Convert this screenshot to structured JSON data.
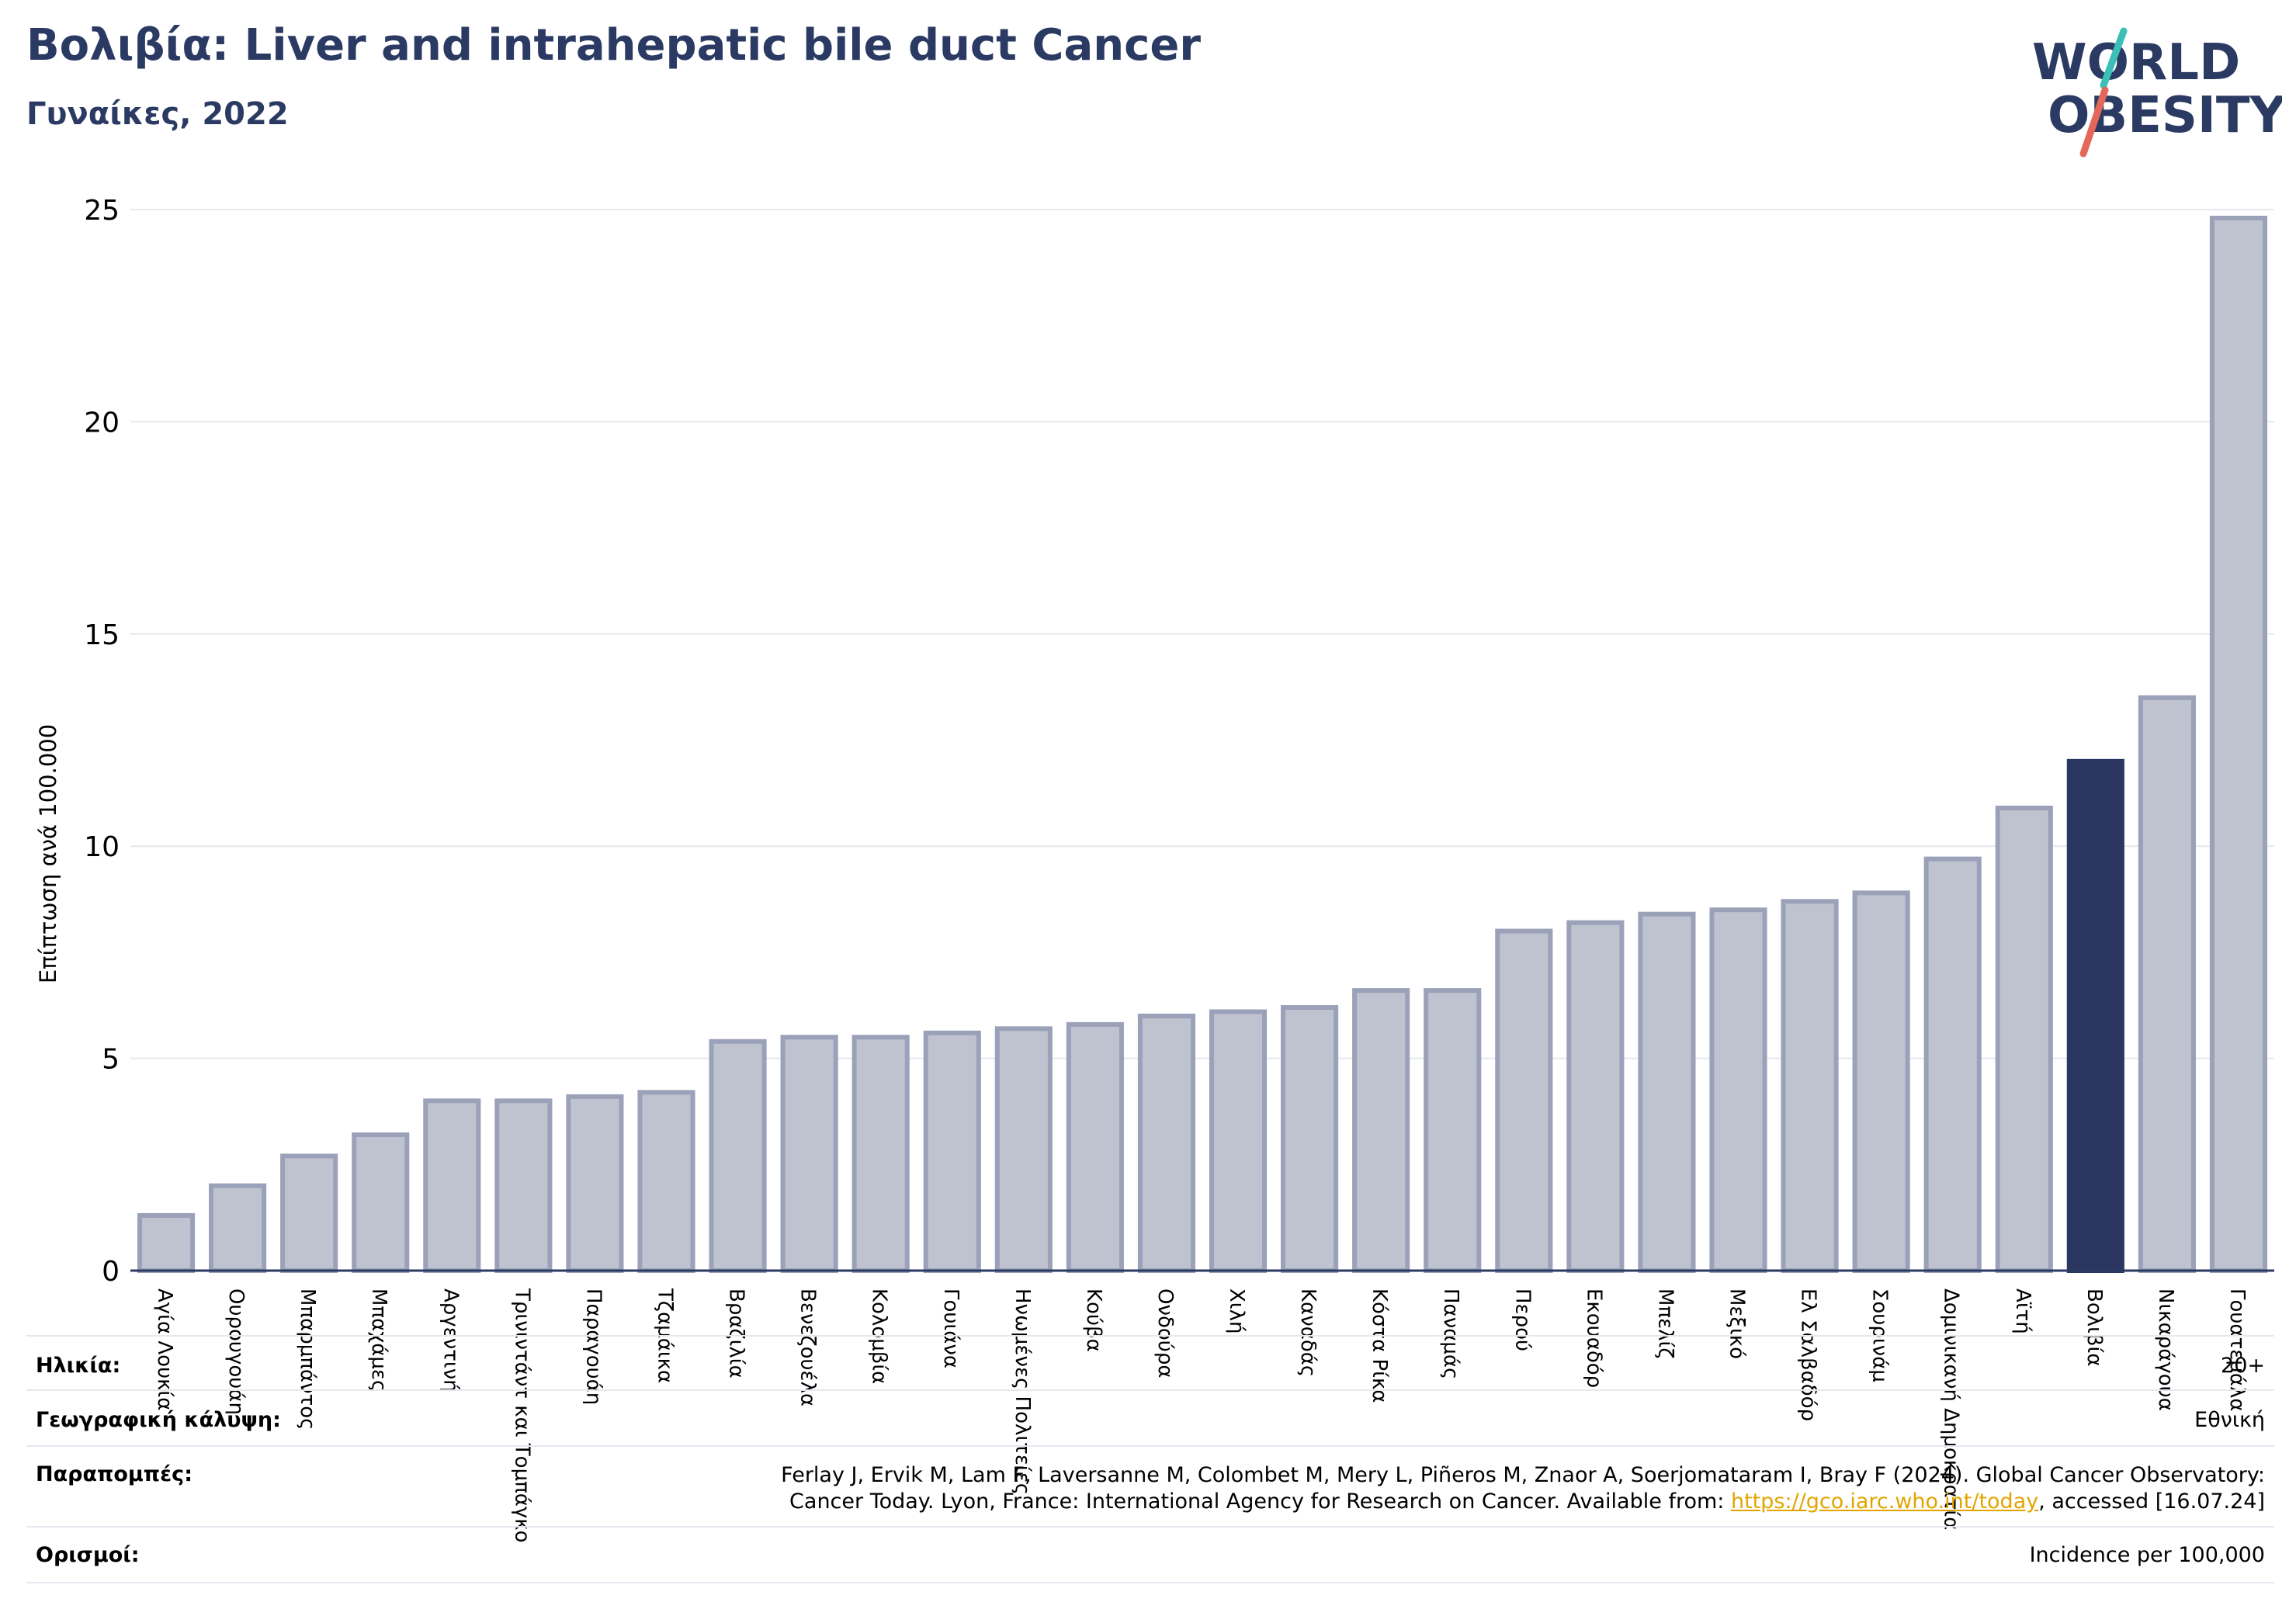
{
  "header": {
    "title": "Βολιβία: Liver and intrahepatic bile duct Cancer",
    "subtitle": "Γυναίκες, 2022"
  },
  "logo": {
    "line1": "WORLD",
    "line2": "OBESITY",
    "colors": {
      "text": "#2b3a63",
      "slash_top": "#3bbfb7",
      "slash_bottom": "#e4685a"
    }
  },
  "colors": {
    "bar_fill": "#bfc3d0",
    "bar_stroke": "#9aa1b8",
    "highlight": "#2b3761",
    "grid": "#e6e8ef",
    "axis": "#2b3a63"
  },
  "chart_data": {
    "type": "bar",
    "ylabel": "Επίπτωση ανά 100.000",
    "ylim": [
      0,
      25
    ],
    "yticks": [
      0,
      5,
      10,
      15,
      20,
      25
    ],
    "grid": true,
    "highlight_category": "Βολιβία",
    "categories": [
      "Αγία Λουκία",
      "Ουρουγουάη",
      "Μπαρμπάντος",
      "Μπαχάμες",
      "Αργεντινή",
      "Τρινιντάντ και Τομπάγκο",
      "Παραγουάη",
      "Τζαμάικα",
      "Βραζιλία",
      "Βενεζουέλα",
      "Κολομβία",
      "Γουιάνα",
      "Ηνωμένες Πολιτείες",
      "Κούβα",
      "Ονδούρα",
      "Χιλή",
      "Καναδάς",
      "Κόστα Ρίκα",
      "Παναμάς",
      "Περού",
      "Εκουαδόρ",
      "Μπελίζ",
      "Μεξικό",
      "Ελ Σαλβαδόρ",
      "Σουρινάμ",
      "Δομινικανή Δημοκρατία",
      "Αϊτή",
      "Βολιβία",
      "Νικαράγουα",
      "Γουατεμάλα"
    ],
    "values": [
      1.3,
      2.0,
      2.7,
      3.2,
      4.0,
      4.0,
      4.1,
      4.2,
      5.4,
      5.5,
      5.5,
      5.6,
      5.7,
      5.8,
      6.0,
      6.1,
      6.2,
      6.6,
      6.6,
      8.0,
      8.2,
      8.4,
      8.5,
      8.7,
      8.9,
      9.7,
      10.9,
      12.0,
      13.5,
      24.8
    ]
  },
  "meta": {
    "age_label": "Ηλικία:",
    "age_value": "20+",
    "coverage_label": "Γεωγραφική κάλυψη:",
    "coverage_value": "Εθνική",
    "refs_label": "Παραπομπές:",
    "refs_line1": "Ferlay J, Ervik M, Lam F, Laversanne M, Colombet M, Mery L, Piñeros M, Znaor A, Soerjomataram I, Bray F (2024). Global Cancer Observatory:",
    "refs_line2_pre": "Cancer Today. Lyon, France: International Agency for Research on Cancer. Available from: ",
    "refs_link": "https://gco.iarc.who.int/today",
    "refs_line2_post": ", accessed [16.07.24]",
    "defs_label": "Ορισμοί:",
    "defs_value": "Incidence per 100,000"
  }
}
